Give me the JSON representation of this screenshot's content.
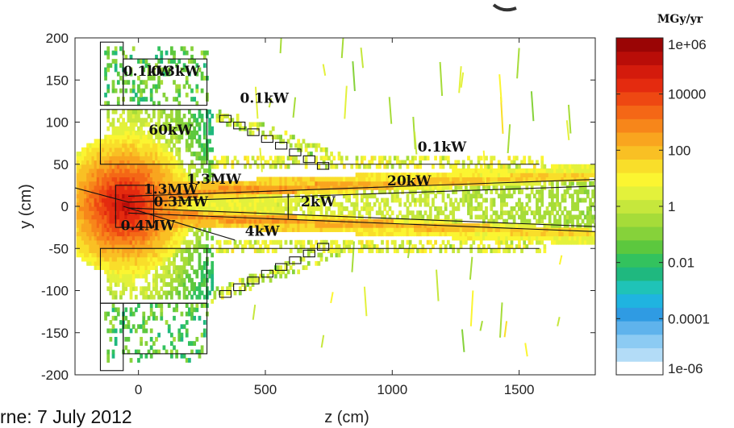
{
  "chart_data": {
    "type": "heatmap",
    "title": "",
    "xlabel": "z (cm)",
    "ylabel": "y (cm)",
    "xlim": [
      -250,
      1800
    ],
    "ylim": [
      -200,
      200
    ],
    "x_ticks": [
      0,
      500,
      1000,
      1500
    ],
    "y_ticks": [
      200,
      150,
      100,
      50,
      0,
      -50,
      -100,
      -150,
      -200
    ],
    "colorbar": {
      "title": "MGy/yr",
      "scale": "log",
      "range": [
        1e-06,
        1000000.0
      ],
      "tick_labels": [
        "1e+06",
        "10000",
        "100",
        "1",
        "0.01",
        "0.0001",
        "1e-06"
      ],
      "tick_values": [
        1000000.0,
        10000,
        100,
        1,
        0.01,
        0.0001,
        1e-06
      ],
      "colors": [
        "#ffffff",
        "#b3dcf7",
        "#8ccbf3",
        "#5fb3ec",
        "#2f9be3",
        "#1fb4e0",
        "#1fc3b7",
        "#1fb87f",
        "#33c25e",
        "#5cc83e",
        "#86d23a",
        "#a6dc39",
        "#c6e73c",
        "#e3f13b",
        "#fbf531",
        "#f9de2a",
        "#f9c024",
        "#f9a51f",
        "#f7861a",
        "#f46716",
        "#ee4812",
        "#e42b0f",
        "#d41b0c",
        "#b90d08",
        "#9a0505"
      ]
    },
    "power_labels": [
      {
        "text": "0.1kW",
        "z": -60,
        "y": 155
      },
      {
        "text": "0.3kW",
        "z": 50,
        "y": 155
      },
      {
        "text": "0.1kW",
        "z": 400,
        "y": 123
      },
      {
        "text": "60kW",
        "z": 40,
        "y": 85
      },
      {
        "text": "0.1kW",
        "z": 1100,
        "y": 65
      },
      {
        "text": "1.3MW",
        "z": 190,
        "y": 27
      },
      {
        "text": "20kW",
        "z": 980,
        "y": 25
      },
      {
        "text": "1.3MW",
        "z": 20,
        "y": 15
      },
      {
        "text": "0.3MW",
        "z": 60,
        "y": 0
      },
      {
        "text": "2kW",
        "z": 640,
        "y": 0
      },
      {
        "text": "0.4MW",
        "z": -70,
        "y": -28
      },
      {
        "text": "4kW",
        "z": 420,
        "y": -35
      }
    ]
  },
  "footer_text": "rne: 7 July 2012"
}
